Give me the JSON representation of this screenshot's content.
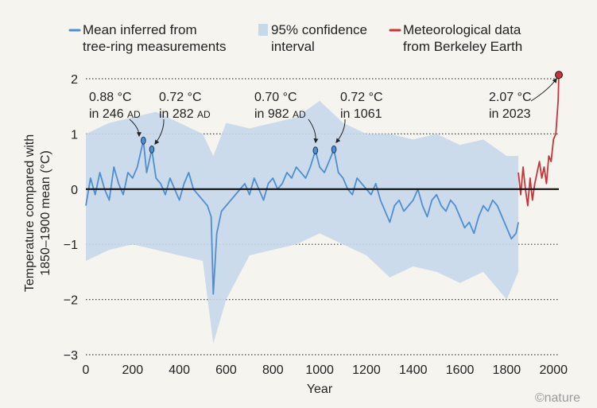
{
  "legend": {
    "mean_line1": "Mean inferred from",
    "mean_line2": "tree-ring measurements",
    "ci_line1": "95% confidence",
    "ci_line2": "interval",
    "met_line1": "Meteorological data",
    "met_line2": "from Berkeley Earth"
  },
  "colors": {
    "mean": "#4f8ed0",
    "ci": "#c7d8ea",
    "met": "#c4363b",
    "background": "#f6f4ee",
    "zero_line": "#111111"
  },
  "brand": "©nature",
  "chart_data": {
    "type": "line",
    "xlabel": "Year",
    "ylabel_line1": "Temperature compared with",
    "ylabel_line2": "1850–1900 mean (°C)",
    "xlim": [
      0,
      2023
    ],
    "ylim": [
      -3,
      2
    ],
    "x_ticks": [
      0,
      200,
      400,
      600,
      800,
      1000,
      1200,
      1400,
      1600,
      1800,
      2000
    ],
    "y_ticks": [
      2,
      1,
      0,
      -1,
      -2,
      -3
    ],
    "y_tick_labels": [
      "2",
      "1",
      "0",
      "−1",
      "−2",
      "−3"
    ],
    "grid": "horizontal dotted",
    "legend_position": "top",
    "series": [
      {
        "name": "Mean inferred from tree-ring measurements",
        "x": [
          0,
          20,
          40,
          60,
          80,
          100,
          120,
          140,
          160,
          180,
          200,
          220,
          246,
          260,
          282,
          300,
          320,
          340,
          360,
          380,
          400,
          420,
          440,
          460,
          480,
          500,
          520,
          536,
          545,
          560,
          580,
          600,
          620,
          640,
          660,
          680,
          700,
          720,
          740,
          760,
          780,
          800,
          820,
          840,
          860,
          880,
          900,
          920,
          940,
          960,
          982,
          1000,
          1020,
          1040,
          1061,
          1080,
          1100,
          1120,
          1140,
          1160,
          1180,
          1200,
          1220,
          1240,
          1260,
          1280,
          1300,
          1320,
          1340,
          1360,
          1380,
          1400,
          1420,
          1440,
          1460,
          1480,
          1500,
          1520,
          1540,
          1560,
          1580,
          1600,
          1620,
          1640,
          1660,
          1680,
          1700,
          1720,
          1740,
          1760,
          1780,
          1800,
          1820,
          1840,
          1850
        ],
        "y": [
          -0.3,
          0.2,
          -0.1,
          0.3,
          0.0,
          -0.2,
          0.4,
          0.1,
          -0.1,
          0.3,
          0.2,
          0.4,
          0.88,
          0.3,
          0.72,
          0.2,
          0.1,
          -0.1,
          0.2,
          0.0,
          -0.2,
          0.1,
          0.3,
          0.0,
          -0.1,
          -0.2,
          -0.3,
          -0.5,
          -1.9,
          -0.8,
          -0.4,
          -0.3,
          -0.2,
          -0.1,
          0.0,
          0.1,
          -0.1,
          0.2,
          0.0,
          -0.2,
          0.1,
          0.2,
          0.0,
          0.1,
          0.3,
          0.2,
          0.4,
          0.3,
          0.2,
          0.4,
          0.7,
          0.4,
          0.3,
          0.5,
          0.72,
          0.3,
          0.2,
          0.0,
          -0.1,
          0.2,
          0.1,
          0.0,
          -0.1,
          0.1,
          -0.2,
          -0.4,
          -0.6,
          -0.3,
          -0.2,
          -0.4,
          -0.3,
          -0.2,
          0.0,
          -0.3,
          -0.5,
          -0.2,
          -0.1,
          -0.3,
          -0.4,
          -0.2,
          -0.3,
          -0.5,
          -0.7,
          -0.6,
          -0.8,
          -0.5,
          -0.3,
          -0.4,
          -0.2,
          -0.3,
          -0.5,
          -0.7,
          -0.9,
          -0.8,
          -0.6
        ]
      },
      {
        "name": "Meteorological data from Berkeley Earth",
        "x": [
          1850,
          1860,
          1870,
          1880,
          1890,
          1900,
          1910,
          1920,
          1930,
          1940,
          1950,
          1960,
          1970,
          1980,
          1990,
          2000,
          2010,
          2015,
          2020,
          2023
        ],
        "y": [
          0.3,
          -0.1,
          0.4,
          0.0,
          -0.3,
          0.2,
          -0.2,
          0.1,
          0.3,
          0.5,
          0.2,
          0.4,
          0.1,
          0.6,
          0.5,
          0.9,
          1.0,
          1.3,
          1.6,
          2.07
        ]
      }
    ],
    "confidence_interval": {
      "name": "95% confidence interval",
      "x": [
        0,
        100,
        200,
        300,
        400,
        500,
        545,
        600,
        700,
        800,
        900,
        1000,
        1100,
        1200,
        1300,
        1400,
        1500,
        1600,
        1700,
        1800,
        1850
      ],
      "lower": [
        -1.3,
        -1.1,
        -1.0,
        -1.1,
        -1.2,
        -1.3,
        -2.8,
        -2.0,
        -1.2,
        -1.1,
        -1.0,
        -0.8,
        -1.0,
        -1.2,
        -1.6,
        -1.4,
        -1.5,
        -1.7,
        -1.5,
        -2.0,
        -1.5
      ],
      "upper": [
        1.0,
        1.2,
        1.3,
        1.4,
        1.2,
        1.0,
        0.6,
        1.2,
        1.1,
        1.2,
        1.3,
        1.6,
        1.2,
        1.0,
        1.0,
        0.9,
        1.0,
        0.8,
        0.9,
        0.6,
        0.6
      ]
    },
    "annotations": [
      {
        "x": 246,
        "y": 0.88,
        "line1": "0.88 °C",
        "line2_pre": "in 246 ",
        "line2_sc": "AD",
        "series": "mean"
      },
      {
        "x": 282,
        "y": 0.72,
        "line1": "0.72 °C",
        "line2_pre": "in 282 ",
        "line2_sc": "AD",
        "series": "mean"
      },
      {
        "x": 982,
        "y": 0.7,
        "line1": "0.70 °C",
        "line2_pre": "in 982 ",
        "line2_sc": "AD",
        "series": "mean"
      },
      {
        "x": 1061,
        "y": 0.72,
        "line1": "0.72 °C",
        "line2_pre": "in 1061",
        "line2_sc": "",
        "series": "mean"
      },
      {
        "x": 2023,
        "y": 2.07,
        "line1": "2.07 °C",
        "line2_pre": "in 2023",
        "line2_sc": "",
        "series": "met"
      }
    ]
  }
}
